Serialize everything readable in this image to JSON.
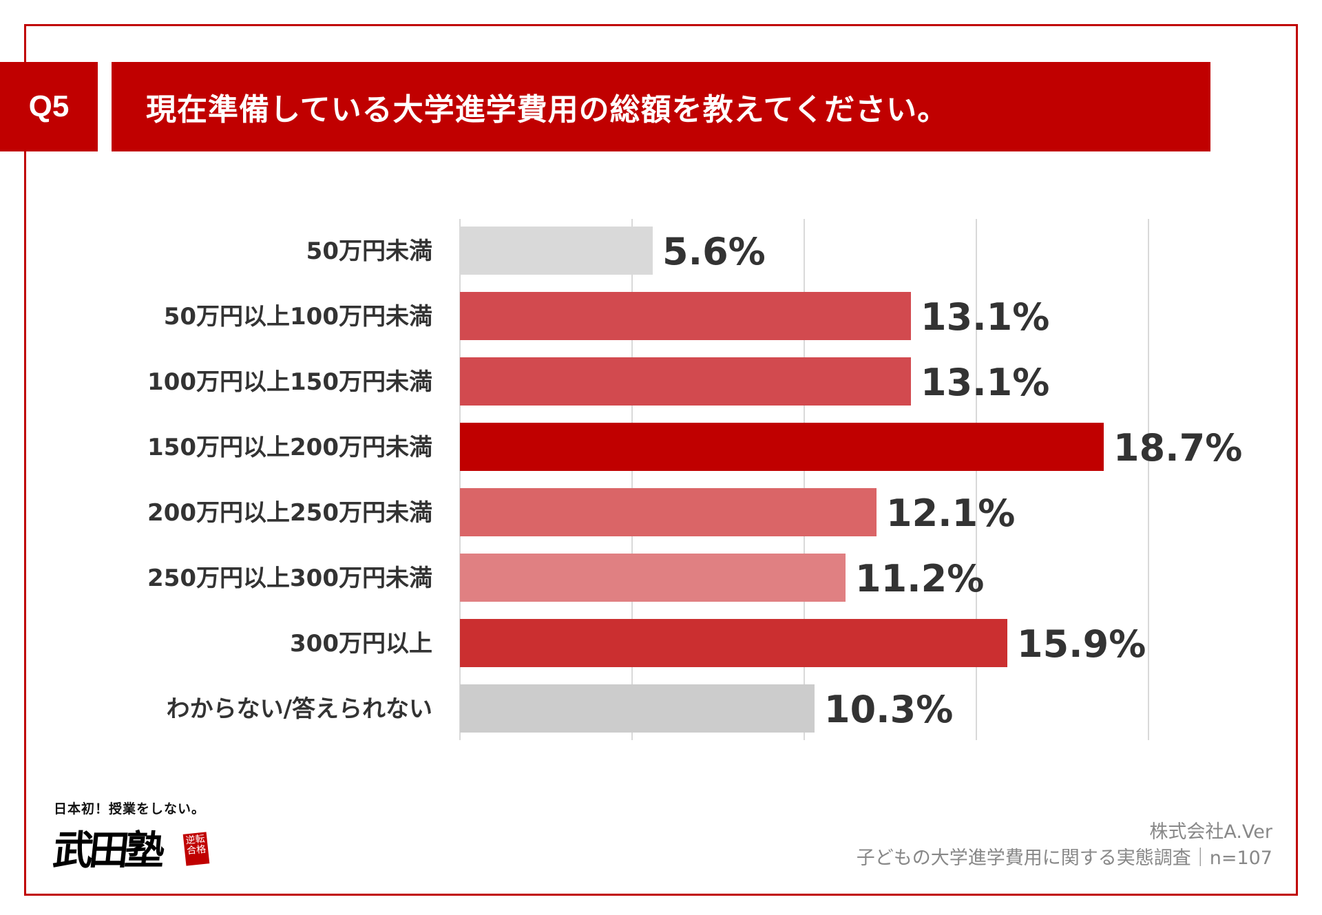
{
  "header": {
    "badge": "Q5",
    "question": "現在準備している大学進学費用の総額を教えてください。"
  },
  "chart_data": {
    "type": "bar",
    "orientation": "horizontal",
    "categories": [
      "50万円未満",
      "50万円以上100万円未満",
      "100万円以上150万円未満",
      "150万円以上200万円未満",
      "200万円以上250万円未満",
      "250万円以上300万円未満",
      "300万円以上",
      "わからない/答えられない"
    ],
    "values": [
      5.6,
      13.1,
      13.1,
      18.7,
      12.1,
      11.2,
      15.9,
      10.3
    ],
    "value_labels": [
      "5.6%",
      "13.1%",
      "13.1%",
      "18.7%",
      "12.1%",
      "11.2%",
      "15.9%",
      "10.3%"
    ],
    "bar_colors": [
      "#d9d9d9",
      "#d24a4f",
      "#d24a4f",
      "#c00000",
      "#da6567",
      "#e08082",
      "#cb2f30",
      "#cccccc"
    ],
    "xlim": [
      0,
      20
    ],
    "grid": true,
    "unit": "%"
  },
  "footer": {
    "company": "株式会社A.Ver",
    "source": "子どもの大学進学費用に関する実態調査｜n=107"
  },
  "logo": {
    "tagline": "日本初！授業をしない。",
    "name": "武田塾",
    "seal": "逆転合格"
  }
}
